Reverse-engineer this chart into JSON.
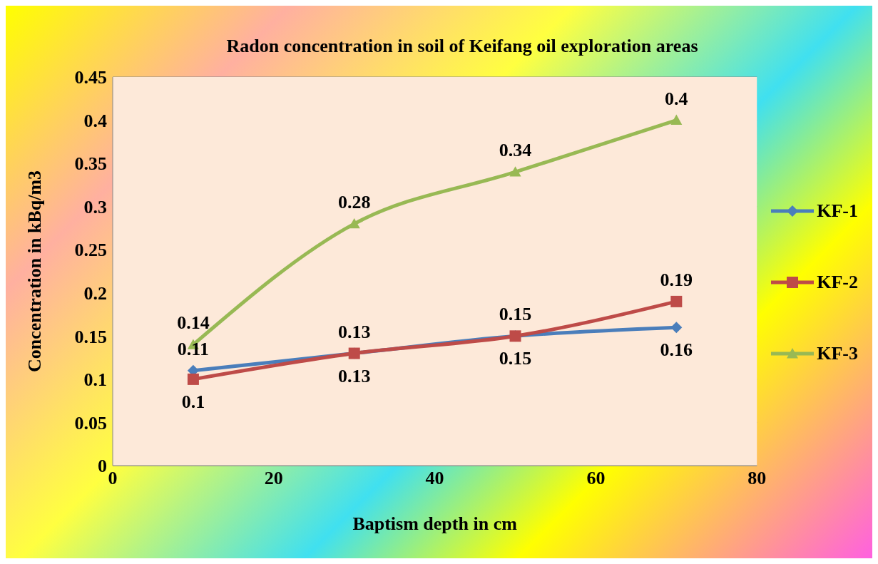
{
  "chart_data": {
    "type": "line",
    "title": "Radon concentration in soil of Keifang oil exploration areas",
    "xlabel": "Baptism depth in cm",
    "ylabel": "Concentration in kBq/m3",
    "x": [
      10,
      30,
      50,
      70
    ],
    "series": [
      {
        "name": "KF-1",
        "color": "#4a7ebb",
        "marker": "diamond",
        "values": [
          0.11,
          0.13,
          0.15,
          0.16
        ]
      },
      {
        "name": "KF-2",
        "color": "#be4b48",
        "marker": "square",
        "values": [
          0.1,
          0.13,
          0.15,
          0.19
        ]
      },
      {
        "name": "KF-3",
        "color": "#98b954",
        "marker": "triangle",
        "values": [
          0.14,
          0.28,
          0.34,
          0.4
        ]
      }
    ],
    "xlim": [
      0,
      80
    ],
    "xticks": [
      0,
      20,
      40,
      60,
      80
    ],
    "ylim": [
      0,
      0.45
    ],
    "yticks": [
      0,
      0.05,
      0.1,
      0.15,
      0.2,
      0.25,
      0.3,
      0.35,
      0.4,
      0.45
    ],
    "grid": "y",
    "legend": "right",
    "data_labels": true,
    "line_style": "solid"
  }
}
